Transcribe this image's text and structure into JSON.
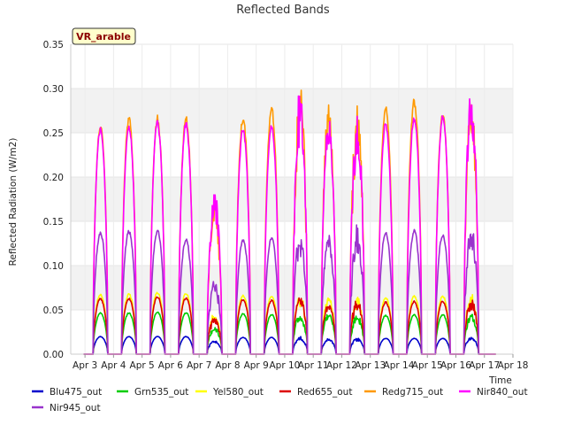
{
  "chart_data": {
    "type": "line",
    "title": "Reflected Bands",
    "xlabel": "Time",
    "ylabel": "Reflected Radiation (W/m2)",
    "annotation": "VR_arable",
    "xlim": [
      2.5,
      18
    ],
    "ylim": [
      0,
      0.35
    ],
    "x_ticks": [
      3,
      4,
      5,
      6,
      7,
      8,
      9,
      10,
      11,
      12,
      13,
      14,
      15,
      16,
      17,
      18
    ],
    "x_tick_labels": [
      "Apr 3",
      "Apr 4",
      "Apr 5",
      "Apr 6",
      "Apr 7",
      "Apr 8",
      "Apr 9",
      "Apr 10",
      "Apr 11",
      "Apr 12",
      "Apr 13",
      "Apr 14",
      "Apr 15",
      "Apr 16",
      "Apr 17",
      "Apr 18"
    ],
    "y_ticks": [
      0.0,
      0.05,
      0.1,
      0.15,
      0.2,
      0.25,
      0.3,
      0.35
    ],
    "y_tick_labels": [
      "0.00",
      "0.05",
      "0.10",
      "0.15",
      "0.20",
      "0.25",
      "0.30",
      "0.35"
    ],
    "grid": "horizontal bands",
    "legend_position": "bottom",
    "days": [
      "Apr 3",
      "Apr 4",
      "Apr 5",
      "Apr 6",
      "Apr 7",
      "Apr 8",
      "Apr 9",
      "Apr 10",
      "Apr 11",
      "Apr 12",
      "Apr 13",
      "Apr 14",
      "Apr 15",
      "Apr 16"
    ],
    "series": [
      {
        "name": "Blu475_out",
        "color": "#0000cc",
        "daily_peak": [
          0.02,
          0.02,
          0.02,
          0.02,
          0.015,
          0.019,
          0.019,
          0.019,
          0.017,
          0.018,
          0.018,
          0.018,
          0.018,
          0.019
        ]
      },
      {
        "name": "Grn535_out",
        "color": "#00cc00",
        "daily_peak": [
          0.047,
          0.047,
          0.048,
          0.047,
          0.03,
          0.046,
          0.045,
          0.045,
          0.045,
          0.044,
          0.044,
          0.045,
          0.045,
          0.044
        ]
      },
      {
        "name": "Yel580_out",
        "color": "#ffff00",
        "daily_peak": [
          0.068,
          0.068,
          0.07,
          0.069,
          0.046,
          0.067,
          0.066,
          0.066,
          0.063,
          0.064,
          0.064,
          0.066,
          0.066,
          0.065
        ]
      },
      {
        "name": "Red655_out",
        "color": "#dd0000",
        "daily_peak": [
          0.063,
          0.063,
          0.065,
          0.064,
          0.04,
          0.062,
          0.061,
          0.063,
          0.056,
          0.06,
          0.059,
          0.06,
          0.06,
          0.06
        ]
      },
      {
        "name": "Redg715_out",
        "color": "#ff9900",
        "daily_peak": [
          0.259,
          0.268,
          0.268,
          0.268,
          0.17,
          0.268,
          0.278,
          0.298,
          0.275,
          0.273,
          0.28,
          0.288,
          0.272,
          0.28
        ]
      },
      {
        "name": "Nir840_out",
        "color": "#ff00ff",
        "daily_peak": [
          0.256,
          0.258,
          0.262,
          0.262,
          0.18,
          0.255,
          0.258,
          0.29,
          0.26,
          0.265,
          0.262,
          0.268,
          0.27,
          0.29
        ]
      },
      {
        "name": "Nir945_out",
        "color": "#9933cc",
        "daily_peak": [
          0.138,
          0.14,
          0.14,
          0.13,
          0.08,
          0.13,
          0.132,
          0.135,
          0.13,
          0.142,
          0.138,
          0.14,
          0.135,
          0.142
        ]
      }
    ]
  }
}
